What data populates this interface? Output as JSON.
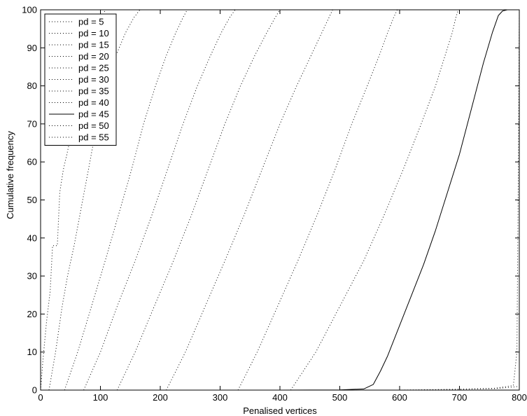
{
  "chart_data": {
    "type": "line",
    "xlabel": "Penalised vertices",
    "ylabel": "Cumulative frequency",
    "xlim": [
      0,
      800
    ],
    "ylim": [
      0,
      100
    ],
    "x_ticks": [
      "0",
      "100",
      "200",
      "300",
      "400",
      "500",
      "600",
      "700",
      "800"
    ],
    "y_ticks": [
      "0",
      "10",
      "20",
      "30",
      "40",
      "50",
      "60",
      "70",
      "80",
      "90",
      "100"
    ],
    "grid": false,
    "legend_position": "top-left",
    "series": [
      {
        "name": "pd = 5",
        "line_style": "dotted",
        "color": "#000000",
        "points": [
          [
            0,
            0
          ],
          [
            4,
            8
          ],
          [
            10,
            18
          ],
          [
            16,
            26
          ],
          [
            20,
            38
          ],
          [
            28,
            38
          ],
          [
            32,
            52
          ],
          [
            38,
            58
          ],
          [
            44,
            62
          ],
          [
            52,
            68
          ],
          [
            60,
            74
          ],
          [
            68,
            80
          ],
          [
            78,
            86
          ],
          [
            88,
            91
          ],
          [
            98,
            96
          ],
          [
            108,
            100
          ],
          [
            800,
            100
          ]
        ]
      },
      {
        "name": "pd = 10",
        "line_style": "dotted",
        "color": "#000000",
        "points": [
          [
            14,
            0
          ],
          [
            25,
            10
          ],
          [
            36,
            22
          ],
          [
            45,
            30
          ],
          [
            56,
            38
          ],
          [
            68,
            48
          ],
          [
            80,
            58
          ],
          [
            94,
            70
          ],
          [
            110,
            80
          ],
          [
            126,
            88
          ],
          [
            142,
            94
          ],
          [
            156,
            98
          ],
          [
            166,
            100
          ],
          [
            800,
            100
          ]
        ]
      },
      {
        "name": "pd = 15",
        "line_style": "dotted",
        "color": "#000000",
        "points": [
          [
            40,
            0
          ],
          [
            62,
            10
          ],
          [
            85,
            22
          ],
          [
            108,
            34
          ],
          [
            130,
            46
          ],
          [
            152,
            58
          ],
          [
            172,
            70
          ],
          [
            192,
            80
          ],
          [
            210,
            88
          ],
          [
            226,
            94
          ],
          [
            238,
            98
          ],
          [
            245,
            100
          ],
          [
            800,
            100
          ]
        ]
      },
      {
        "name": "pd = 20",
        "line_style": "dotted",
        "color": "#000000",
        "points": [
          [
            72,
            0
          ],
          [
            100,
            10
          ],
          [
            128,
            22
          ],
          [
            158,
            34
          ],
          [
            186,
            46
          ],
          [
            212,
            58
          ],
          [
            238,
            70
          ],
          [
            262,
            80
          ],
          [
            284,
            88
          ],
          [
            302,
            94
          ],
          [
            316,
            98
          ],
          [
            325,
            100
          ],
          [
            800,
            100
          ]
        ]
      },
      {
        "name": "pd = 25",
        "line_style": "dotted",
        "color": "#000000",
        "points": [
          [
            128,
            0
          ],
          [
            158,
            10
          ],
          [
            190,
            22
          ],
          [
            222,
            34
          ],
          [
            252,
            46
          ],
          [
            280,
            58
          ],
          [
            308,
            70
          ],
          [
            334,
            80
          ],
          [
            358,
            88
          ],
          [
            378,
            94
          ],
          [
            392,
            98
          ],
          [
            400,
            100
          ],
          [
            800,
            100
          ]
        ]
      },
      {
        "name": "pd = 30",
        "line_style": "dotted",
        "color": "#000000",
        "points": [
          [
            210,
            0
          ],
          [
            242,
            10
          ],
          [
            275,
            22
          ],
          [
            308,
            34
          ],
          [
            340,
            46
          ],
          [
            370,
            58
          ],
          [
            400,
            70
          ],
          [
            428,
            80
          ],
          [
            452,
            88
          ],
          [
            470,
            94
          ],
          [
            482,
            98
          ],
          [
            488,
            100
          ],
          [
            800,
            100
          ]
        ]
      },
      {
        "name": "pd = 35",
        "line_style": "dotted",
        "color": "#000000",
        "points": [
          [
            330,
            0
          ],
          [
            362,
            10
          ],
          [
            396,
            22
          ],
          [
            430,
            34
          ],
          [
            462,
            46
          ],
          [
            492,
            58
          ],
          [
            520,
            70
          ],
          [
            546,
            80
          ],
          [
            566,
            88
          ],
          [
            580,
            94
          ],
          [
            590,
            98
          ],
          [
            596,
            100
          ],
          [
            800,
            100
          ]
        ]
      },
      {
        "name": "pd = 40",
        "line_style": "dotted",
        "color": "#000000",
        "points": [
          [
            418,
            0
          ],
          [
            460,
            10
          ],
          [
            500,
            22
          ],
          [
            540,
            34
          ],
          [
            574,
            46
          ],
          [
            606,
            58
          ],
          [
            636,
            70
          ],
          [
            660,
            80
          ],
          [
            676,
            88
          ],
          [
            688,
            94
          ],
          [
            694,
            98
          ],
          [
            698,
            100
          ],
          [
            800,
            100
          ]
        ]
      },
      {
        "name": "pd = 45",
        "line_style": "solid",
        "color": "#000000",
        "points": [
          [
            0,
            0
          ],
          [
            400,
            0
          ],
          [
            500,
            0.05
          ],
          [
            540,
            0.3
          ],
          [
            556,
            1.5
          ],
          [
            568,
            5
          ],
          [
            580,
            9
          ],
          [
            600,
            17
          ],
          [
            620,
            25
          ],
          [
            640,
            33
          ],
          [
            660,
            42
          ],
          [
            680,
            52
          ],
          [
            700,
            62
          ],
          [
            720,
            74
          ],
          [
            740,
            86
          ],
          [
            755,
            94
          ],
          [
            765,
            98.5
          ],
          [
            772,
            99.7
          ],
          [
            780,
            100
          ],
          [
            800,
            100
          ]
        ]
      },
      {
        "name": "pd = 50",
        "line_style": "dotted",
        "color": "#000000",
        "points": [
          [
            0,
            0
          ],
          [
            300,
            0
          ],
          [
            500,
            0
          ],
          [
            650,
            0
          ],
          [
            760,
            0.5
          ],
          [
            790,
            1.2
          ],
          [
            796,
            10
          ],
          [
            798,
            50
          ],
          [
            800,
            100
          ]
        ]
      },
      {
        "name": "pd = 55",
        "line_style": "dotted",
        "color": "#000000",
        "points": [
          [
            0,
            0
          ],
          [
            600,
            0
          ],
          [
            700,
            0.2
          ],
          [
            760,
            0.4
          ],
          [
            790,
            0.8
          ],
          [
            800,
            1
          ]
        ]
      }
    ]
  }
}
